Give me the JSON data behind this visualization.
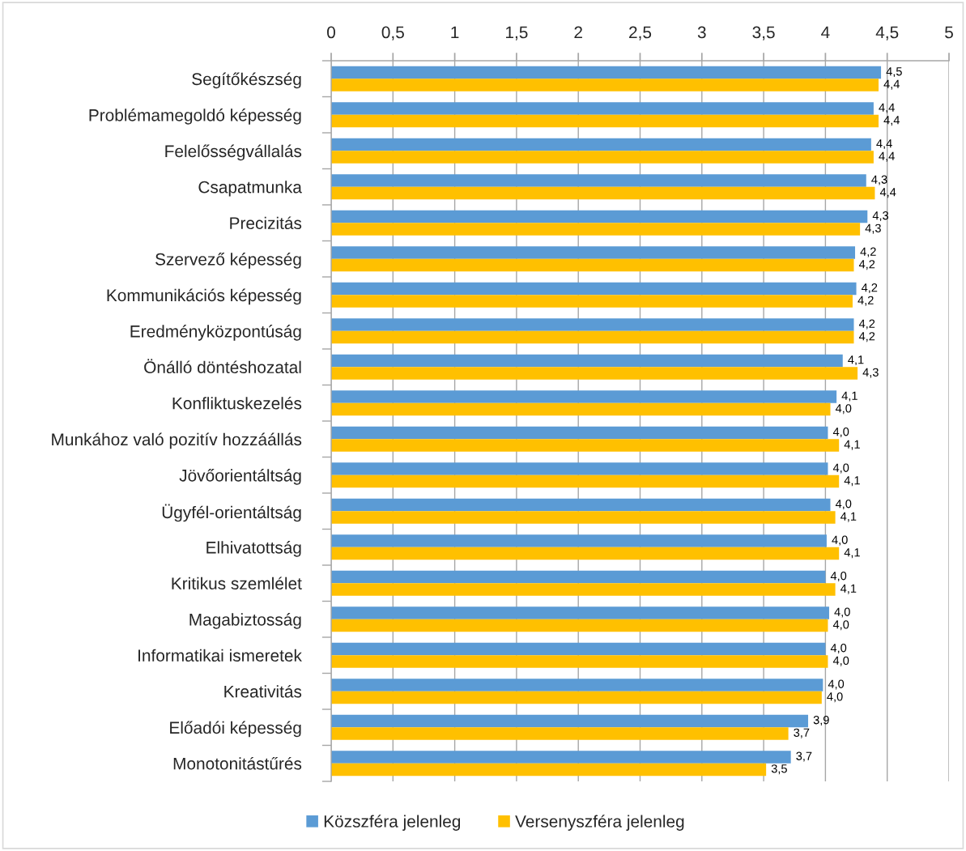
{
  "chart_data": {
    "type": "bar",
    "orientation": "horizontal",
    "categories": [
      "Segítőkészség",
      "Problémamegoldó képesség",
      "Felelősségvállalás",
      "Csapatmunka",
      "Precizitás",
      "Szervező képesség",
      "Kommunikációs képesség",
      "Eredményközpontúság",
      "Önálló döntéshozatal",
      "Konfliktuskezelés",
      "Munkához való pozitív hozzáállás",
      "Jövőorientáltság",
      "Ügyfél-orientáltság",
      "Elhivatottság",
      "Kritikus szemlélet",
      "Magabiztosság",
      "Informatikai ismeretek",
      "Kreativitás",
      "Előadói képesség",
      "Monotonitástűrés"
    ],
    "series": [
      {
        "name": "Közszféra jelenleg",
        "color": "#5b9bd5",
        "values": [
          4.45,
          4.39,
          4.37,
          4.33,
          4.34,
          4.24,
          4.25,
          4.23,
          4.14,
          4.09,
          4.02,
          4.02,
          4.04,
          4.01,
          4.0,
          4.03,
          4.0,
          3.98,
          3.86,
          3.72
        ],
        "value_labels": [
          "4,5",
          "4,4",
          "4,4",
          "4,3",
          "4,3",
          "4,2",
          "4,2",
          "4,2",
          "4,1",
          "4,1",
          "4,0",
          "4,0",
          "4,0",
          "4,0",
          "4,0",
          "4,0",
          "4,0",
          "4,0",
          "3,9",
          "3,7"
        ]
      },
      {
        "name": "Versenyszféra jelenleg",
        "color": "#ffc000",
        "values": [
          4.43,
          4.43,
          4.39,
          4.4,
          4.28,
          4.23,
          4.22,
          4.23,
          4.26,
          4.04,
          4.11,
          4.11,
          4.08,
          4.11,
          4.08,
          4.02,
          4.02,
          3.97,
          3.7,
          3.52
        ],
        "value_labels": [
          "4,4",
          "4,4",
          "4,4",
          "4,4",
          "4,3",
          "4,2",
          "4,2",
          "4,2",
          "4,3",
          "4,0",
          "4,1",
          "4,1",
          "4,1",
          "4,1",
          "4,1",
          "4,0",
          "4,0",
          "4,0",
          "3,7",
          "3,5"
        ]
      }
    ],
    "xlim": [
      0,
      5
    ],
    "xticks": [
      0,
      {
        "value": 0.5,
        "label": "0,5"
      },
      1,
      {
        "value": 1.5,
        "label": "1,5"
      },
      2,
      {
        "value": 2.5,
        "label": "2,5"
      },
      3,
      {
        "value": 3.5,
        "label": "3,5"
      },
      4,
      {
        "value": 4.5,
        "label": "4,5"
      },
      5
    ],
    "grid": "x",
    "legend": "bottom"
  }
}
